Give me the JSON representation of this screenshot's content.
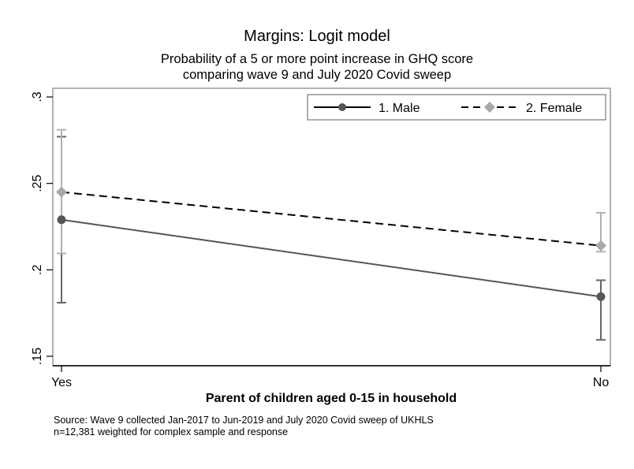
{
  "chart_data": {
    "type": "line",
    "title": "Margins: Logit model",
    "subtitle": [
      "Probability of a 5 or more point increase in GHQ score",
      "comparing wave 9 and July 2020 Covid sweep"
    ],
    "xlabel": "Parent of children aged 0-15 in household",
    "ylabel": "",
    "categories": [
      "Yes",
      "No"
    ],
    "ylim": [
      0.15,
      0.3
    ],
    "yticks": [
      0.15,
      0.2,
      0.25,
      0.3
    ],
    "ytick_labels": [
      ".15",
      ".2",
      ".25",
      ".3"
    ],
    "grid": false,
    "legend_position": "top-right",
    "series": [
      {
        "name": "1. Male",
        "values": [
          0.229,
          0.1845
        ],
        "ci_low": [
          0.181,
          0.1595
        ],
        "ci_high": [
          0.277,
          0.194
        ],
        "color": "#555555",
        "marker_color": "#555555",
        "dash": "solid",
        "marker": "circle"
      },
      {
        "name": "2. Female",
        "values": [
          0.245,
          0.214
        ],
        "ci_low": [
          0.2095,
          0.2105
        ],
        "ci_high": [
          0.281,
          0.233
        ],
        "color": "#000000",
        "marker_color": "#a8a8a8",
        "dash": "dashed",
        "marker": "diamond"
      }
    ],
    "notes": [
      "Source: Wave 9 collected Jan-2017 to Jun-2019 and July 2020 Covid sweep of UKHLS",
      "n=12,381 weighted for complex sample and response"
    ]
  }
}
